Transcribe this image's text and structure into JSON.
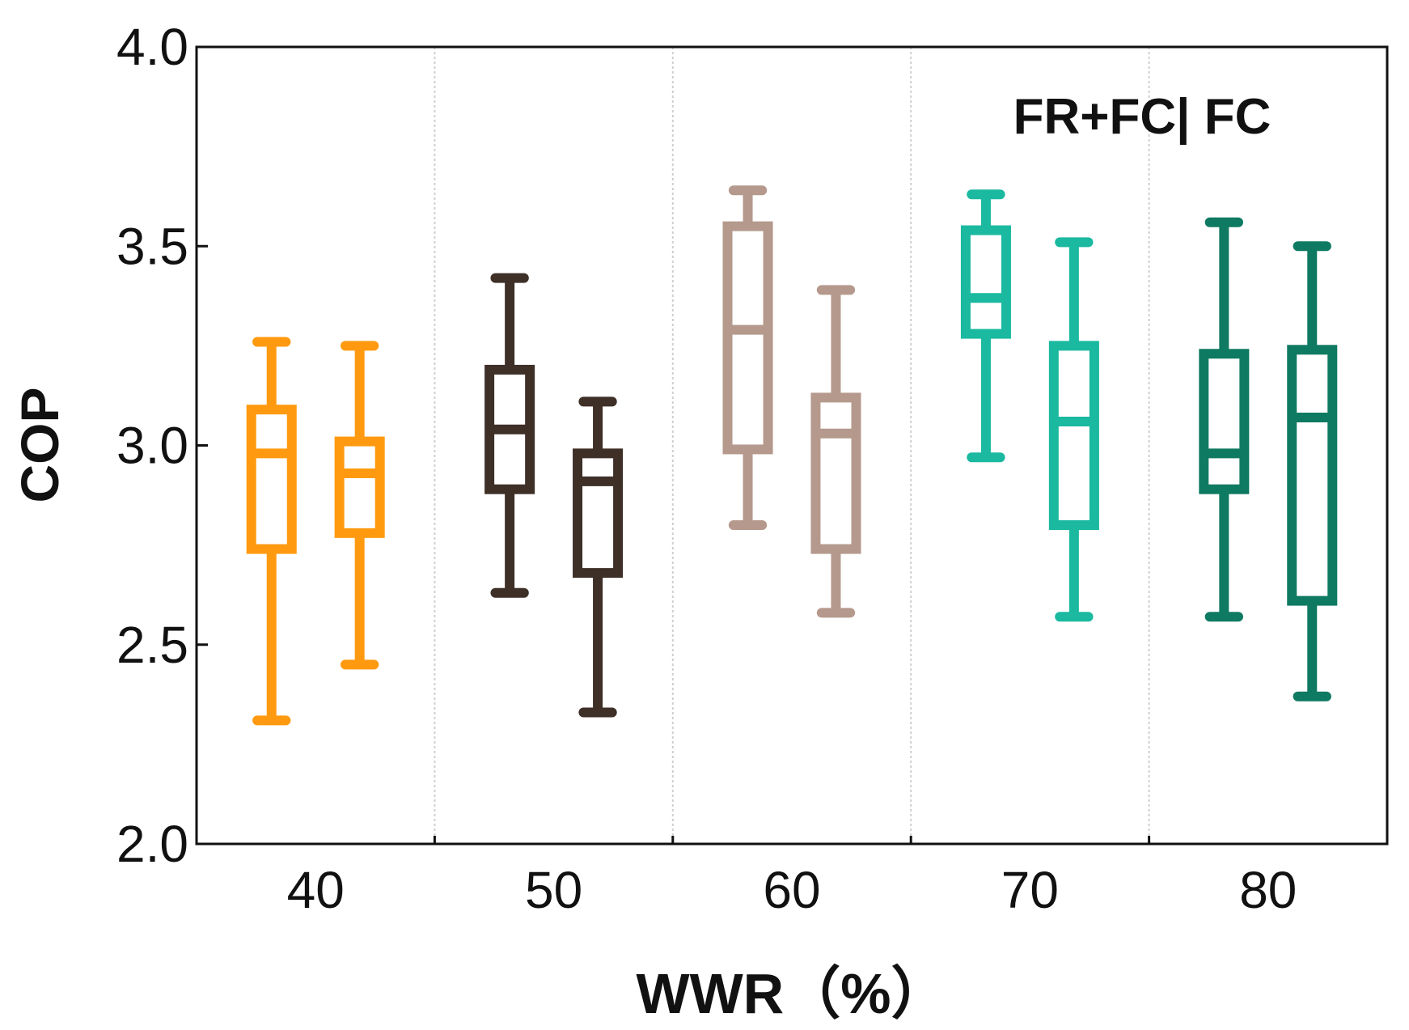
{
  "chart_data": {
    "type": "box",
    "title": "",
    "annotation": "FR+FC| FC",
    "xlabel": "WWR（%）",
    "ylabel": "COP",
    "ylim": [
      2.0,
      4.0
    ],
    "yticks": [
      "2.0",
      "2.5",
      "3.0",
      "3.5",
      "4.0"
    ],
    "categories": [
      "40",
      "50",
      "60",
      "70",
      "80"
    ],
    "series_names": [
      "FR+FC",
      "FC"
    ],
    "colors": [
      "#ff9a10",
      "#3e2f27",
      "#b4998c",
      "#1ab9a0",
      "#0f7a62"
    ],
    "boxes": [
      {
        "category": "40",
        "series": "FR+FC",
        "min": 2.31,
        "q1": 2.74,
        "median": 2.98,
        "q3": 3.09,
        "max": 3.26
      },
      {
        "category": "40",
        "series": "FC",
        "min": 2.45,
        "q1": 2.78,
        "median": 2.93,
        "q3": 3.01,
        "max": 3.25
      },
      {
        "category": "50",
        "series": "FR+FC",
        "min": 2.63,
        "q1": 2.89,
        "median": 3.04,
        "q3": 3.19,
        "max": 3.42
      },
      {
        "category": "50",
        "series": "FC",
        "min": 2.33,
        "q1": 2.68,
        "median": 2.91,
        "q3": 2.98,
        "max": 3.11
      },
      {
        "category": "60",
        "series": "FR+FC",
        "min": 2.8,
        "q1": 2.99,
        "median": 3.29,
        "q3": 3.55,
        "max": 3.64
      },
      {
        "category": "60",
        "series": "FC",
        "min": 2.58,
        "q1": 2.74,
        "median": 3.03,
        "q3": 3.12,
        "max": 3.39
      },
      {
        "category": "70",
        "series": "FR+FC",
        "min": 2.97,
        "q1": 3.28,
        "median": 3.37,
        "q3": 3.54,
        "max": 3.63
      },
      {
        "category": "70",
        "series": "FC",
        "min": 2.57,
        "q1": 2.8,
        "median": 3.06,
        "q3": 3.25,
        "max": 3.51
      },
      {
        "category": "80",
        "series": "FR+FC",
        "min": 2.57,
        "q1": 2.89,
        "median": 2.98,
        "q3": 3.23,
        "max": 3.56
      },
      {
        "category": "80",
        "series": "FC",
        "min": 2.37,
        "q1": 2.61,
        "median": 3.07,
        "q3": 3.24,
        "max": 3.5
      }
    ]
  }
}
